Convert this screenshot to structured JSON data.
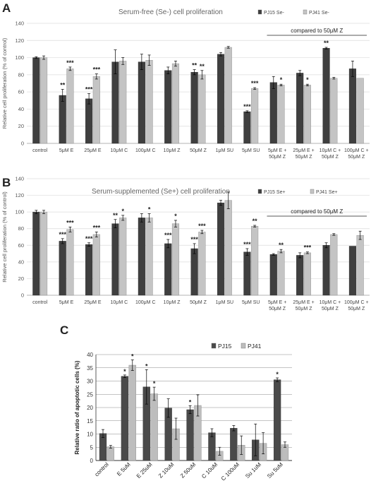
{
  "chart_data": [
    {
      "type": "bar",
      "panel": "A",
      "title": "Serum-free (Se-) cell proliferation",
      "ylabel": "Relative cell proliferation (% of control)",
      "xlabel": "",
      "ylim": [
        0,
        140
      ],
      "yticks": [
        0,
        20,
        40,
        60,
        80,
        100,
        120,
        140
      ],
      "grid": true,
      "legend_position": "top-right",
      "categories": [
        "control",
        "5μM E",
        "25μM E",
        "10μM C",
        "100μM C",
        "10μM Z",
        "50μM Z",
        "1μM SU",
        "5μM SU",
        "5μM E + 50μM Z",
        "25μM E + 50μM Z",
        "10μM C + 50μM Z",
        "100μM C + 50μM Z"
      ],
      "series": [
        {
          "name": "PJ15 Se-",
          "color": "#3f3f3f",
          "values": [
            100,
            56,
            52,
            95,
            95,
            85,
            83,
            104,
            37,
            71,
            82,
            111,
            87
          ],
          "errors": [
            1,
            7,
            6,
            14,
            9,
            4,
            3,
            2,
            1,
            7,
            3,
            1,
            9
          ],
          "sig": [
            "",
            "**",
            "***",
            "",
            "",
            "",
            "**",
            "",
            "***",
            "",
            "",
            "**",
            ""
          ]
        },
        {
          "name": "PJ41 Se-",
          "color": "#c4c4c4",
          "values": [
            100,
            87,
            78,
            96,
            97,
            93,
            80,
            112,
            64,
            68,
            68,
            76,
            76
          ],
          "errors": [
            2,
            2,
            3,
            4,
            6,
            3,
            5,
            1,
            1,
            1,
            1,
            1,
            0
          ],
          "sig": [
            "",
            "***",
            "***",
            "",
            "",
            "",
            "**",
            "",
            "***",
            "*",
            "*",
            "",
            ""
          ]
        }
      ],
      "bracket_label": "compared to 50μM Z"
    },
    {
      "type": "bar",
      "panel": "B",
      "title": "Serum-supplemented (Se+) cell proliferation",
      "ylabel": "Relative cell proliferation (% of control)",
      "xlabel": "",
      "ylim": [
        0,
        140
      ],
      "yticks": [
        0,
        20,
        40,
        60,
        80,
        100,
        120,
        140
      ],
      "grid": true,
      "legend_position": "top-right",
      "categories": [
        "control",
        "5μM E",
        "25μM E",
        "10μM C",
        "100μM C",
        "10μM Z",
        "50μM Z",
        "1μM SU",
        "5μM SU",
        "5μM E + 50μM Z",
        "25μM E + 50μM Z",
        "10μM C + 50μM Z",
        "100μM C + 50μM Z"
      ],
      "series": [
        {
          "name": "PJ15 Se+",
          "color": "#3f3f3f",
          "values": [
            100,
            65,
            61,
            86,
            93,
            62,
            56,
            111,
            52,
            49,
            48,
            60,
            59
          ],
          "errors": [
            2,
            3,
            2,
            5,
            5,
            5,
            6,
            3,
            4,
            1,
            3,
            3,
            0
          ],
          "sig": [
            "",
            "***",
            "***",
            "**",
            "",
            "***",
            "***",
            "",
            "***",
            "",
            "",
            "",
            ""
          ]
        },
        {
          "name": "PJ41 Se+",
          "color": "#c4c4c4",
          "values": [
            100,
            79,
            73,
            93,
            93,
            86,
            76,
            114,
            83,
            53,
            51,
            73,
            72
          ],
          "errors": [
            2,
            3,
            3,
            3,
            5,
            4,
            2,
            10,
            1,
            2,
            1,
            1,
            5
          ],
          "sig": [
            "",
            "***",
            "***",
            "*",
            "*",
            "*",
            "***",
            "",
            "**",
            "**",
            "***",
            "",
            ""
          ]
        }
      ],
      "bracket_label": "compared to 50μM Z"
    },
    {
      "type": "bar",
      "panel": "C",
      "title": "",
      "ylabel": "Relative ratio of apoptotic cells (%)",
      "xlabel": "",
      "ylim": [
        0,
        40
      ],
      "yticks": [
        0,
        5,
        10,
        15,
        20,
        25,
        30,
        35,
        40
      ],
      "grid": true,
      "legend_position": "top-center",
      "categories": [
        "control",
        "E 5uM",
        "E 25uM",
        "Z 10uM",
        "Z 50uM",
        "C 10uM",
        "C 100uM",
        "Su 1uM",
        "Su 5uM"
      ],
      "series": [
        {
          "name": "PJ15",
          "color": "#4a4a4a",
          "values": [
            10.2,
            31.8,
            27.8,
            19.8,
            19.2,
            10.5,
            12.2,
            7.8,
            30.5
          ],
          "errors": [
            1.5,
            0.5,
            6.5,
            3.5,
            1.5,
            1.5,
            1.0,
            6.0,
            0.7
          ],
          "sig": [
            "",
            "*",
            "*",
            "",
            "*",
            "",
            "",
            "",
            "*"
          ]
        },
        {
          "name": "PJ41",
          "color": "#bdbdbd",
          "values": [
            5.2,
            36.0,
            25.2,
            12.0,
            20.8,
            3.5,
            5.8,
            6.5,
            6.0
          ],
          "errors": [
            0.5,
            2.0,
            2.5,
            4.0,
            4.0,
            1.5,
            3.5,
            4.0,
            1.0
          ],
          "sig": [
            "",
            "*",
            "*",
            "",
            "",
            "",
            "",
            "",
            ""
          ]
        }
      ]
    }
  ],
  "panel_labels": [
    "A",
    "B",
    "C"
  ]
}
